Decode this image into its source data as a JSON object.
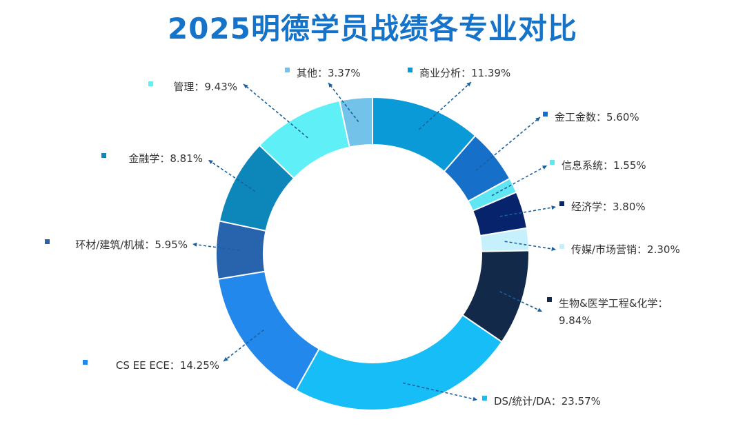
{
  "chart_data": {
    "type": "pie",
    "title": "2025明德学员战绩各专业对比",
    "legend": "none",
    "slices": [
      {
        "label": "商业分析：11.39%",
        "value": 11.39,
        "color": "#0a9ad8"
      },
      {
        "label": "金工金数：5.60%",
        "value": 5.6,
        "color": "#166fc9"
      },
      {
        "label": "信息系统：1.55%",
        "value": 1.55,
        "color": "#5fe6f2"
      },
      {
        "label": "经济学：3.80%",
        "value": 3.8,
        "color": "#07236b"
      },
      {
        "label": "传媒/市场营销：2.30%",
        "value": 2.3,
        "color": "#c6f0fc"
      },
      {
        "label": "生物&医学工程&化学：",
        "label2": "9.84%",
        "value": 9.84,
        "color": "#13294a"
      },
      {
        "label": "DS/统计/DA：23.57%",
        "value": 23.57,
        "color": "#16bdf7"
      },
      {
        "label": "CS EE ECE：14.25%",
        "value": 14.25,
        "color": "#2388ec"
      },
      {
        "label": "环材/建筑/机械：5.95%",
        "value": 5.95,
        "color": "#2864ad"
      },
      {
        "label": "金融学：8.81%",
        "value": 8.81,
        "color": "#0d86b9"
      },
      {
        "label": "管理：9.43%",
        "value": 9.43,
        "color": "#5ff0f7"
      },
      {
        "label": "其他：3.37%",
        "value": 3.37,
        "color": "#72c2ea"
      }
    ]
  }
}
